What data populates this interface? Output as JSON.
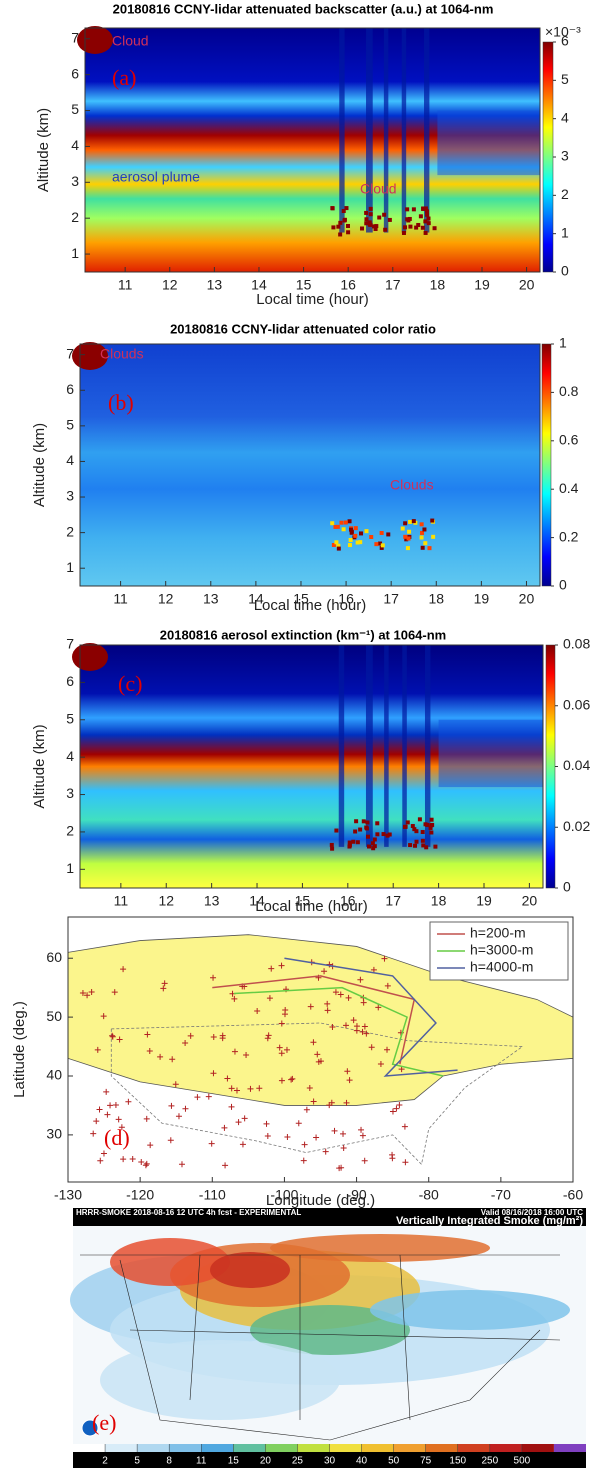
{
  "chart_data": [
    {
      "type": "heatmap",
      "title": "20180816  CCNY-lidar attenuated backscatter (a.u.) at 1064-nm",
      "xlabel": "Local time (hour)",
      "ylabel": "Altitude (km)",
      "xlim": [
        10.1,
        20.3
      ],
      "xticks": [
        11,
        12,
        13,
        14,
        15,
        16,
        17,
        18,
        19,
        20
      ],
      "ylim": [
        0.5,
        7.3
      ],
      "yticks": [
        1,
        2,
        3,
        4,
        5,
        6,
        7
      ],
      "colorbar": {
        "lim": [
          0,
          6
        ],
        "ticks": [
          0,
          1,
          2,
          3,
          4,
          5,
          6
        ],
        "label": "×10⁻³"
      },
      "annotations": [
        "Cloud",
        "(a)",
        "aerosol plume",
        "Cloud"
      ]
    },
    {
      "type": "heatmap",
      "title": "20180816 CCNY-lidar attenuated color ratio",
      "xlabel": "Local time (hour)",
      "ylabel": "Altitude (km)",
      "xlim": [
        10.1,
        20.3
      ],
      "xticks": [
        11,
        12,
        13,
        14,
        15,
        16,
        17,
        18,
        19,
        20
      ],
      "ylim": [
        0.5,
        7.3
      ],
      "yticks": [
        1,
        2,
        3,
        4,
        5,
        6,
        7
      ],
      "colorbar": {
        "lim": [
          0,
          1
        ],
        "ticks": [
          0,
          0.2,
          0.4,
          0.6,
          0.8,
          1
        ]
      },
      "annotations": [
        "Clouds",
        "(b)",
        "Clouds"
      ]
    },
    {
      "type": "heatmap",
      "title": "20180816 aerosol extinction (km⁻¹) at 1064-nm",
      "xlabel": "Local time (hour)",
      "ylabel": "Altitude (km)",
      "xlim": [
        10.1,
        20.3
      ],
      "xticks": [
        11,
        12,
        13,
        14,
        15,
        16,
        17,
        18,
        19,
        20
      ],
      "ylim": [
        0.5,
        7
      ],
      "yticks": [
        1,
        2,
        3,
        4,
        5,
        6,
        7
      ],
      "colorbar": {
        "lim": [
          0,
          0.08
        ],
        "ticks": [
          0,
          0.02,
          0.04,
          0.06,
          0.08
        ]
      },
      "annotations": [
        "(c)"
      ]
    },
    {
      "type": "map",
      "xlabel": "Longitude (deg.)",
      "ylabel": "Latitude (deg.)",
      "xlim": [
        -130,
        -60
      ],
      "xticks": [
        -130,
        -120,
        -110,
        -100,
        -90,
        -80,
        -70,
        -60
      ],
      "ylim": [
        22,
        67
      ],
      "yticks": [
        30,
        40,
        50,
        60
      ],
      "legend": [
        {
          "name": "h=200-m",
          "color": "#c0504d"
        },
        {
          "name": "h=3000-m",
          "color": "#66cc44"
        },
        {
          "name": "h=4000-m",
          "color": "#5060a0"
        }
      ],
      "annotations": [
        "(d)"
      ]
    },
    {
      "type": "image",
      "header_left": "HRRR-SMOKE 2018-08-16 12 UTC 4h fcst - EXPERIMENTAL",
      "header_right": "Valid 08/16/2018 16:00 UTC",
      "title": "Vertically Integrated Smoke (mg/m²)",
      "colorbar": {
        "ticks": [
          2,
          5,
          8,
          11,
          15,
          20,
          25,
          30,
          40,
          50,
          75,
          150,
          250,
          500
        ]
      },
      "annotations": [
        "(e)"
      ]
    }
  ]
}
